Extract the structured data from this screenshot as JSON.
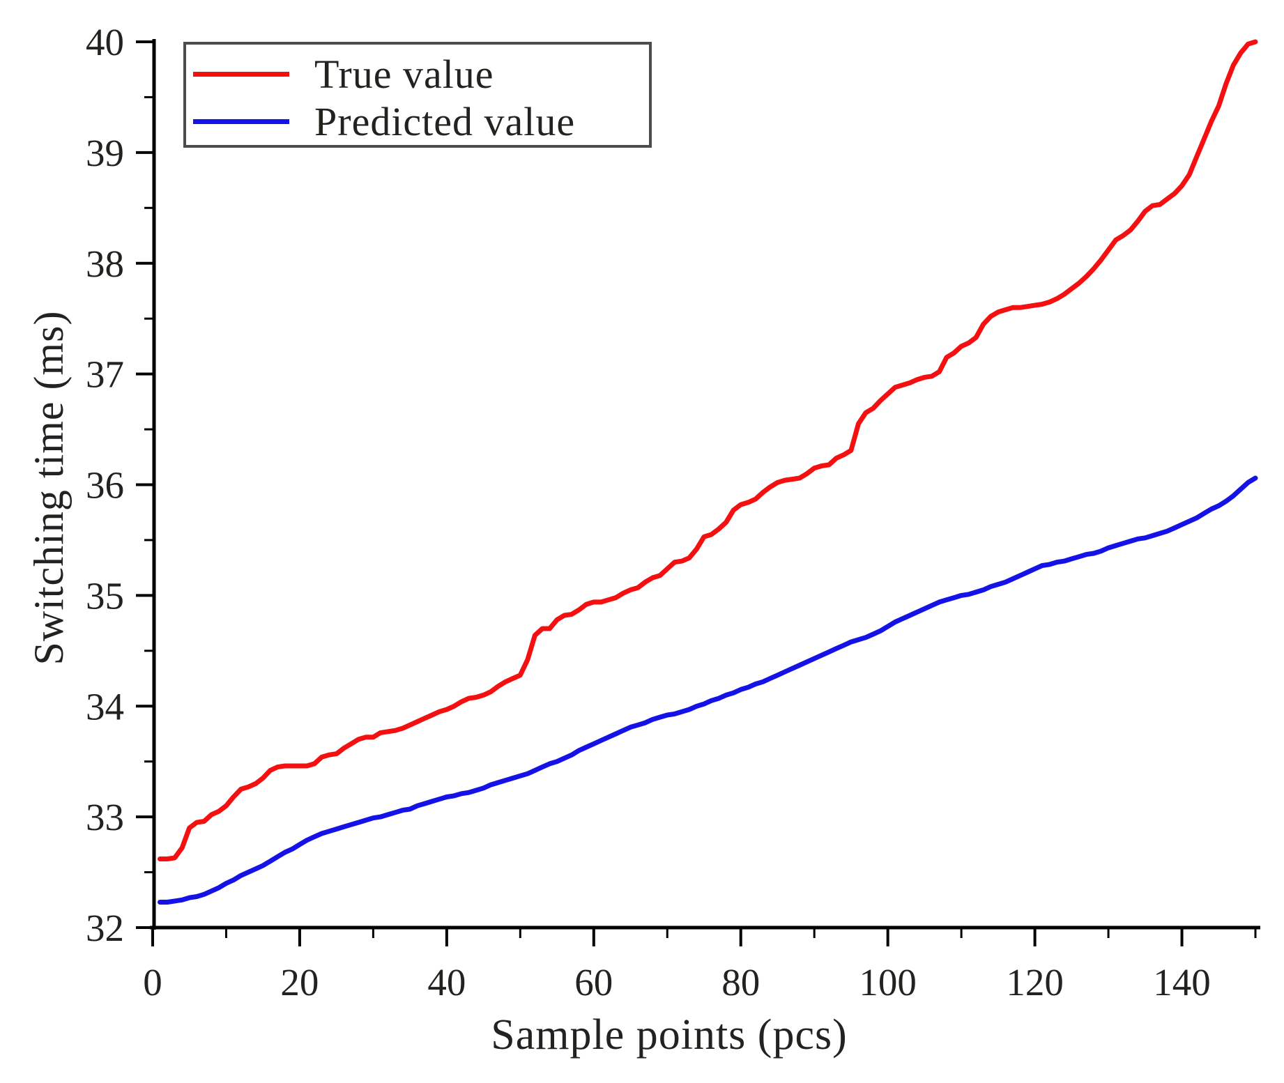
{
  "figure": {
    "background": "#ffffff",
    "axis_color": "#000000",
    "text_color": "#22221f",
    "legend_border_color": "#4d4d4d"
  },
  "chart_data": {
    "type": "line",
    "title": "",
    "xlabel": "Sample points (pcs)",
    "ylabel": "Switching time (ms)",
    "xlim": [
      0,
      150
    ],
    "ylim": [
      32,
      40
    ],
    "grid": false,
    "legend_position": "top-left",
    "x_axis": {
      "label": "Sample points (pcs)",
      "major_ticks": [
        0,
        20,
        40,
        60,
        80,
        100,
        120,
        140
      ],
      "minor_ticks": [
        10,
        30,
        50,
        70,
        90,
        110,
        130,
        150
      ]
    },
    "y_axis": {
      "label": "Switching time (ms)",
      "major_ticks": [
        32,
        33,
        34,
        35,
        36,
        37,
        38,
        39,
        40
      ],
      "minor_ticks": [
        32.5,
        33.5,
        34.5,
        35.5,
        36.5,
        37.5,
        38.5,
        39.5
      ]
    },
    "x_start": 1,
    "x_step": 1,
    "series": [
      {
        "name": "True value",
        "color": "#f41010",
        "values": [
          32.62,
          32.62,
          32.63,
          32.72,
          32.9,
          32.95,
          32.96,
          33.02,
          33.05,
          33.1,
          33.18,
          33.25,
          33.27,
          33.3,
          33.35,
          33.42,
          33.45,
          33.46,
          33.46,
          33.46,
          33.46,
          33.48,
          33.54,
          33.56,
          33.57,
          33.62,
          33.66,
          33.7,
          33.72,
          33.72,
          33.76,
          33.77,
          33.78,
          33.8,
          33.83,
          33.86,
          33.89,
          33.92,
          33.95,
          33.97,
          34.0,
          34.04,
          34.07,
          34.08,
          34.1,
          34.13,
          34.18,
          34.22,
          34.25,
          34.28,
          34.42,
          34.64,
          34.7,
          34.7,
          34.78,
          34.82,
          34.83,
          34.87,
          34.92,
          34.94,
          34.94,
          34.96,
          34.98,
          35.02,
          35.05,
          35.07,
          35.12,
          35.16,
          35.18,
          35.24,
          35.3,
          35.31,
          35.34,
          35.42,
          35.53,
          35.55,
          35.6,
          35.66,
          35.77,
          35.82,
          35.84,
          35.87,
          35.93,
          35.98,
          36.02,
          36.04,
          36.05,
          36.06,
          36.1,
          36.15,
          36.17,
          36.18,
          36.24,
          36.27,
          36.31,
          36.55,
          36.65,
          36.69,
          36.76,
          36.82,
          36.88,
          36.9,
          36.92,
          36.95,
          36.97,
          36.98,
          37.02,
          37.15,
          37.19,
          37.25,
          37.28,
          37.33,
          37.45,
          37.52,
          37.56,
          37.58,
          37.6,
          37.6,
          37.61,
          37.62,
          37.63,
          37.65,
          37.68,
          37.72,
          37.77,
          37.82,
          37.88,
          37.95,
          38.03,
          38.12,
          38.21,
          38.25,
          38.3,
          38.38,
          38.47,
          38.52,
          38.53,
          38.58,
          38.63,
          38.7,
          38.8,
          38.96,
          39.12,
          39.28,
          39.42,
          39.62,
          39.79,
          39.9,
          39.98,
          40.0
        ]
      },
      {
        "name": "Predicted value",
        "color": "#1512e8",
        "values": [
          32.23,
          32.23,
          32.24,
          32.25,
          32.27,
          32.28,
          32.3,
          32.33,
          32.36,
          32.4,
          32.43,
          32.47,
          32.5,
          32.53,
          32.56,
          32.6,
          32.64,
          32.68,
          32.71,
          32.75,
          32.79,
          32.82,
          32.85,
          32.87,
          32.89,
          32.91,
          32.93,
          32.95,
          32.97,
          32.99,
          33.0,
          33.02,
          33.04,
          33.06,
          33.07,
          33.1,
          33.12,
          33.14,
          33.16,
          33.18,
          33.19,
          33.21,
          33.22,
          33.24,
          33.26,
          33.29,
          33.31,
          33.33,
          33.35,
          33.37,
          33.39,
          33.42,
          33.45,
          33.48,
          33.5,
          33.53,
          33.56,
          33.6,
          33.63,
          33.66,
          33.69,
          33.72,
          33.75,
          33.78,
          33.81,
          33.83,
          33.85,
          33.88,
          33.9,
          33.92,
          33.93,
          33.95,
          33.97,
          34.0,
          34.02,
          34.05,
          34.07,
          34.1,
          34.12,
          34.15,
          34.17,
          34.2,
          34.22,
          34.25,
          34.28,
          34.31,
          34.34,
          34.37,
          34.4,
          34.43,
          34.46,
          34.49,
          34.52,
          34.55,
          34.58,
          34.6,
          34.62,
          34.65,
          34.68,
          34.72,
          34.76,
          34.79,
          34.82,
          34.85,
          34.88,
          34.91,
          34.94,
          34.96,
          34.98,
          35.0,
          35.01,
          35.03,
          35.05,
          35.08,
          35.1,
          35.12,
          35.15,
          35.18,
          35.21,
          35.24,
          35.27,
          35.28,
          35.3,
          35.31,
          35.33,
          35.35,
          35.37,
          35.38,
          35.4,
          35.43,
          35.45,
          35.47,
          35.49,
          35.51,
          35.52,
          35.54,
          35.56,
          35.58,
          35.61,
          35.64,
          35.67,
          35.7,
          35.74,
          35.78,
          35.81,
          35.85,
          35.9,
          35.96,
          36.02,
          36.06
        ]
      }
    ]
  }
}
